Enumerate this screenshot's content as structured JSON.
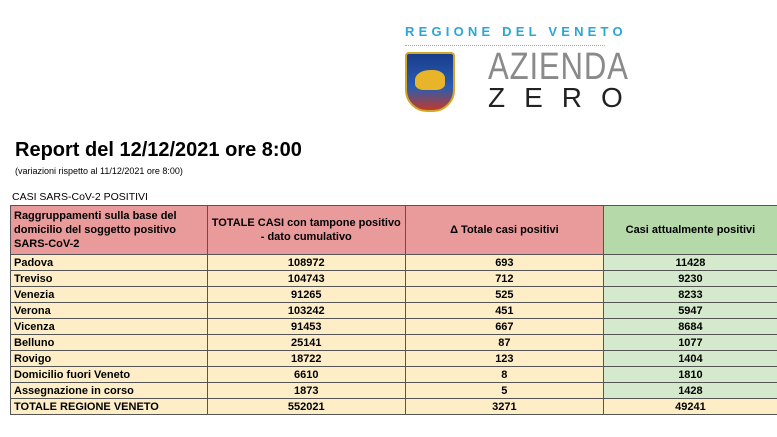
{
  "logo": {
    "region": "REGIONE DEL VENETO",
    "line1": "AZIENDA",
    "line2": "ZERO"
  },
  "title": "Report del 12/12/2021 ore 8:00",
  "subtitle": "(variazioni rispetto al 11/12/2021 ore 8:00)",
  "section": "CASI SARS-CoV-2 POSITIVI",
  "colors": {
    "header_red": "#e99b9b",
    "header_green": "#b5d9a8",
    "row_yellow": "#fdeec7",
    "row_green": "#d5e9cc",
    "logo_blue": "#2aa6d9"
  },
  "table": {
    "headers": [
      "Raggruppamenti sulla base del domicilio del soggetto positivo SARS-CoV-2",
      "TOTALE CASI con tampone positivo - dato cumulativo",
      "Δ Totale casi positivi",
      "Casi attualmente positivi"
    ],
    "rows": [
      [
        "Padova",
        "108972",
        "693",
        "11428"
      ],
      [
        "Treviso",
        "104743",
        "712",
        "9230"
      ],
      [
        "Venezia",
        "91265",
        "525",
        "8233"
      ],
      [
        "Verona",
        "103242",
        "451",
        "5947"
      ],
      [
        "Vicenza",
        "91453",
        "667",
        "8684"
      ],
      [
        "Belluno",
        "25141",
        "87",
        "1077"
      ],
      [
        "Rovigo",
        "18722",
        "123",
        "1404"
      ],
      [
        "Domicilio fuori Veneto",
        "6610",
        "8",
        "1810"
      ],
      [
        "Assegnazione in corso",
        "1873",
        "5",
        "1428"
      ],
      [
        "TOTALE REGIONE VENETO",
        "552021",
        "3271",
        "49241"
      ]
    ]
  }
}
